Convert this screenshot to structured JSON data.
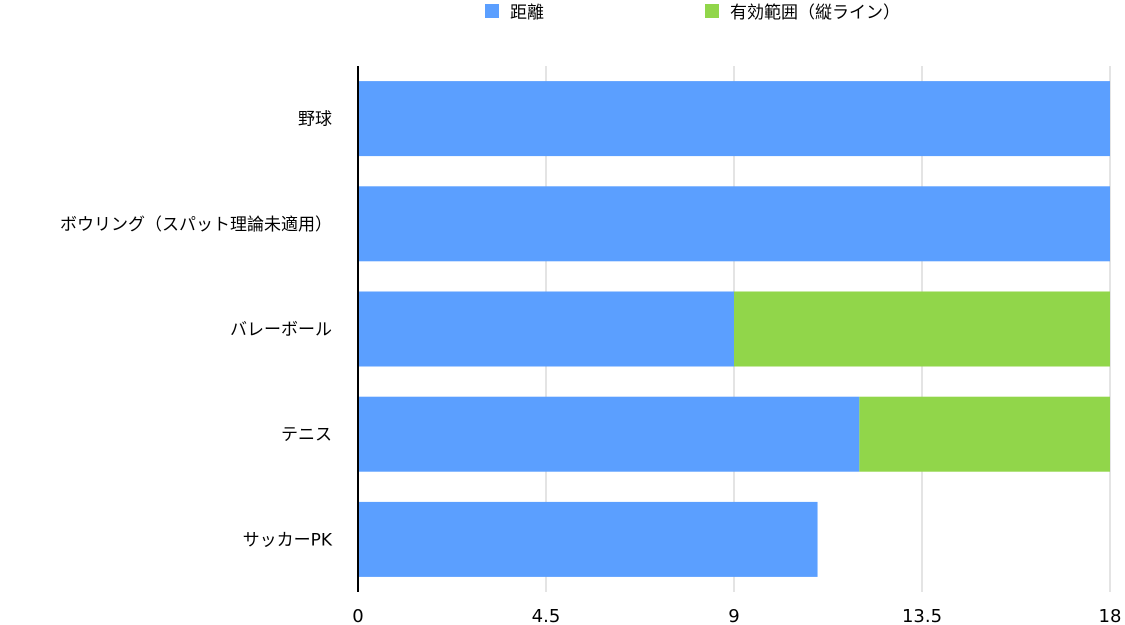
{
  "chart_data": {
    "type": "bar",
    "orientation": "horizontal",
    "stacked": true,
    "categories": [
      "野球",
      "ボウリング（スパット理論未適用）",
      "バレーボール",
      "テニス",
      "サッカーPK"
    ],
    "series": [
      {
        "name": "距離",
        "color": "#5B9FFF",
        "values": [
          18,
          18,
          9,
          12,
          11
        ]
      },
      {
        "name": "有効範囲（縦ライン）",
        "color": "#91D64A",
        "values": [
          0,
          0,
          9,
          6,
          0
        ]
      }
    ],
    "xlim": [
      0,
      18
    ],
    "xticks": [
      0,
      4.5,
      9,
      13.5,
      18
    ],
    "xtick_labels": [
      "0",
      "4.5",
      "9",
      "13.5",
      "18"
    ],
    "grid": "vertical",
    "legend_position": "top",
    "title": "",
    "xlabel": "",
    "ylabel": ""
  }
}
